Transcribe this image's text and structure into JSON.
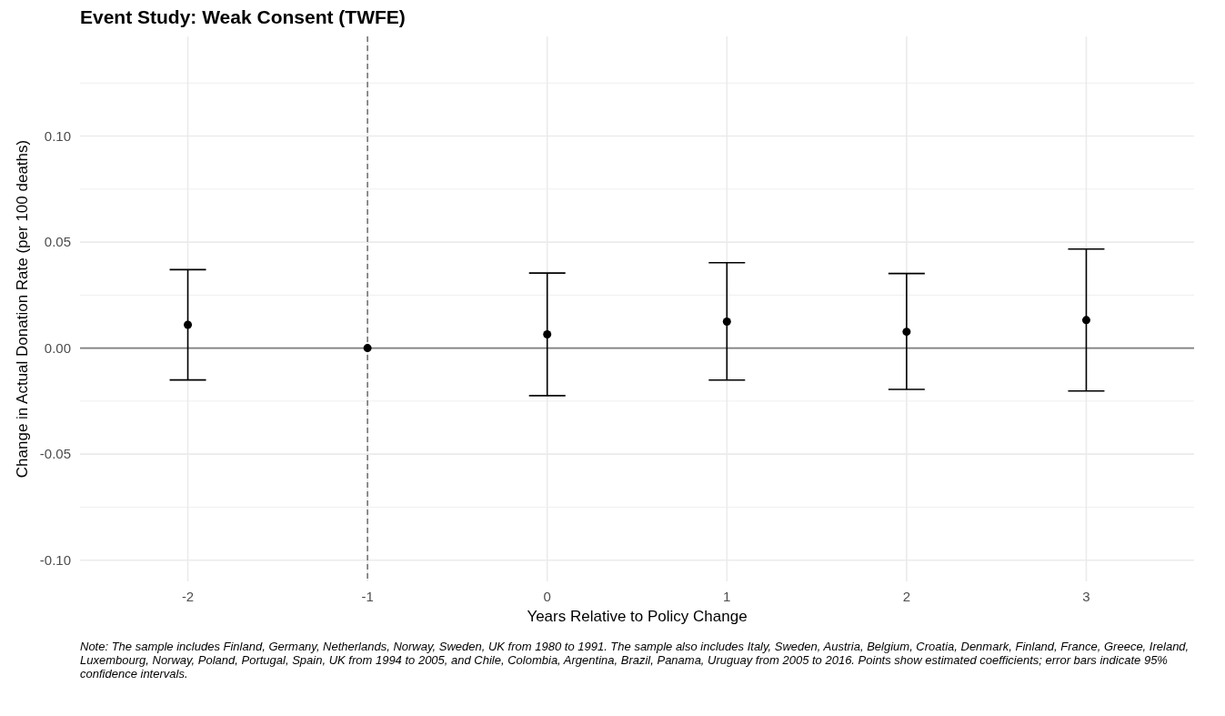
{
  "chart_data": {
    "type": "scatter",
    "title": "Event Study: Weak Consent (TWFE)",
    "xlabel": "Years Relative to Policy Change",
    "ylabel": "Change in Actual Donation Rate (per 100 deaths)",
    "x": [
      -2,
      -1,
      0,
      1,
      2,
      3
    ],
    "series": [
      {
        "color": "#000000",
        "values": [
          0.011,
          0,
          0.0065,
          0.0125,
          0.0077,
          0.0132
        ],
        "errors": [
          [
            -0.015,
            0.037
          ],
          null,
          [
            -0.0224,
            0.0354
          ],
          [
            -0.0151,
            0.0403
          ],
          [
            -0.0195,
            0.0352
          ],
          [
            -0.0202,
            0.0467
          ]
        ]
      }
    ],
    "xlim": [
      -2.6,
      3.6
    ],
    "xticks": [
      -2,
      -1,
      0,
      1,
      2,
      3
    ],
    "ylim": [
      -0.11,
      0.147
    ],
    "yticks": [
      {
        "value": -0.1,
        "label": "-0.10"
      },
      {
        "value": -0.05,
        "label": "-0.05"
      },
      {
        "value": 0,
        "label": "0.00"
      },
      {
        "value": 0.05,
        "label": "0.05"
      },
      {
        "value": 0.1,
        "label": "0.10"
      }
    ],
    "grid": true,
    "marker": "circle",
    "ref_lines": [
      {
        "axis": "y",
        "value": 0,
        "color": "#7f7f7f",
        "line_style": "solid"
      },
      {
        "axis": "x",
        "value": -1,
        "color": "#666666",
        "line_style": "dashed"
      }
    ],
    "annotations": [
      "Note: The sample includes Finland, Germany, Netherlands, Norway, Sweden, UK from 1980 to 1991. The sample also includes Italy, Sweden, Austria, Belgium, Croatia, Denmark, Finland, France, Greece, Ireland, Luxembourg, Norway, Poland, Portugal, Spain, UK from 1994 to 2005, and Chile, Colombia, Argentina, Brazil, Panama, Uruguay from 2005 to 2016. Points show estimated coefficients; error bars indicate 95% confidence intervals."
    ]
  }
}
